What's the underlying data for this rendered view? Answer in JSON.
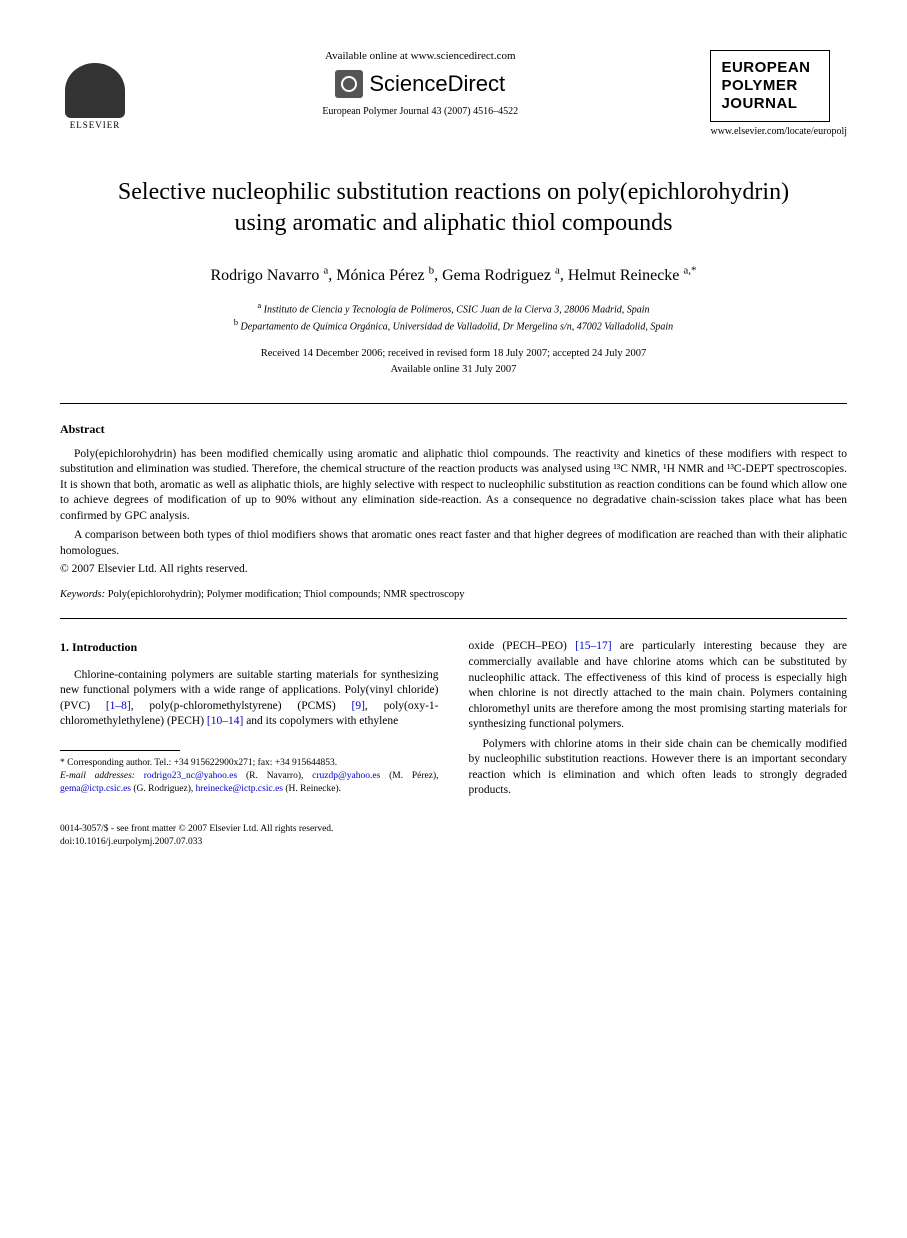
{
  "header": {
    "elsevier_label": "ELSEVIER",
    "available_text": "Available online at www.sciencedirect.com",
    "sd_name": "ScienceDirect",
    "citation": "European Polymer Journal 43 (2007) 4516–4522",
    "journal_line1": "EUROPEAN",
    "journal_line2": "POLYMER",
    "journal_line3": "JOURNAL",
    "journal_url": "www.elsevier.com/locate/europolj"
  },
  "title": "Selective nucleophilic substitution reactions on poly(epichlorohydrin) using aromatic and aliphatic thiol compounds",
  "authors": [
    {
      "name": "Rodrigo Navarro",
      "sup": "a"
    },
    {
      "name": "Mónica Pérez",
      "sup": "b"
    },
    {
      "name": "Gema Rodriguez",
      "sup": "a"
    },
    {
      "name": "Helmut Reinecke",
      "sup": "a,*"
    }
  ],
  "affiliations": [
    {
      "sup": "a",
      "text": "Instituto de Ciencia y Tecnología de Polímeros, CSIC Juan de la Cierva 3, 28006 Madrid, Spain"
    },
    {
      "sup": "b",
      "text": "Departamento de Química Orgánica, Universidad de Valladolid, Dr Mergelina s/n, 47002 Valladolid, Spain"
    }
  ],
  "dates_line1": "Received 14 December 2006; received in revised form 18 July 2007; accepted 24 July 2007",
  "dates_line2": "Available online 31 July 2007",
  "abstract": {
    "heading": "Abstract",
    "p1": "Poly(epichlorohydrin) has been modified chemically using aromatic and aliphatic thiol compounds. The reactivity and kinetics of these modifiers with respect to substitution and elimination was studied. Therefore, the chemical structure of the reaction products was analysed using ¹³C NMR, ¹H NMR and ¹³C-DEPT spectroscopies. It is shown that both, aromatic as well as aliphatic thiols, are highly selective with respect to nucleophilic substitution as reaction conditions can be found which allow one to achieve degrees of modification of up to 90% without any elimination side-reaction. As a consequence no degradative chain-scission takes place what has been confirmed by GPC analysis.",
    "p2": "A comparison between both types of thiol modifiers shows that aromatic ones react faster and that higher degrees of modification are reached than with their aliphatic homologues.",
    "copyright": "© 2007 Elsevier Ltd. All rights reserved."
  },
  "keywords": {
    "label": "Keywords:",
    "text": "Poly(epichlorohydrin); Polymer modification; Thiol compounds; NMR spectroscopy"
  },
  "section1": {
    "heading": "1. Introduction",
    "left_p1_a": "Chlorine-containing polymers are suitable starting materials for synthesizing new functional polymers with a wide range of applications. Poly(vinyl chloride) (PVC) ",
    "ref1": "[1–8]",
    "left_p1_b": ", poly(p-chloromethylstyrene) (PCMS) ",
    "ref2": "[9]",
    "left_p1_c": ", poly(oxy-1-chloromethylethylene) (PECH) ",
    "ref3": "[10–14]",
    "left_p1_d": " and its copolymers with ethylene",
    "right_p1_a": "oxide (PECH–PEO) ",
    "ref4": "[15–17]",
    "right_p1_b": " are particularly interesting because they are commercially available and have chlorine atoms which can be substituted by nucleophilic attack. The effectiveness of this kind of process is especially high when chlorine is not directly attached to the main chain. Polymers containing chloromethyl units are therefore among the most promising starting materials for synthesizing functional polymers.",
    "right_p2": "Polymers with chlorine atoms in their side chain can be chemically modified by nucleophilic substitution reactions. However there is an important secondary reaction which is elimination and which often leads to strongly degraded products."
  },
  "footnotes": {
    "corr": "* Corresponding author. Tel.: +34 915622900x271; fax: +34 915644853.",
    "email_label": "E-mail addresses:",
    "emails": [
      {
        "addr": "rodrigo23_nc@yahoo.es",
        "who": "(R. Navarro)"
      },
      {
        "addr": "cruzdp@yahoo.es",
        "who": "(M. Pérez)"
      },
      {
        "addr": "gema@ictp.csic.es",
        "who": "(G. Rodriguez)"
      },
      {
        "addr": "hreinecke@ictp.csic.es",
        "who": "(H. Reinecke)"
      }
    ]
  },
  "footer": {
    "line1": "0014-3057/$ - see front matter © 2007 Elsevier Ltd. All rights reserved.",
    "line2": "doi:10.1016/j.eurpolymj.2007.07.033"
  }
}
